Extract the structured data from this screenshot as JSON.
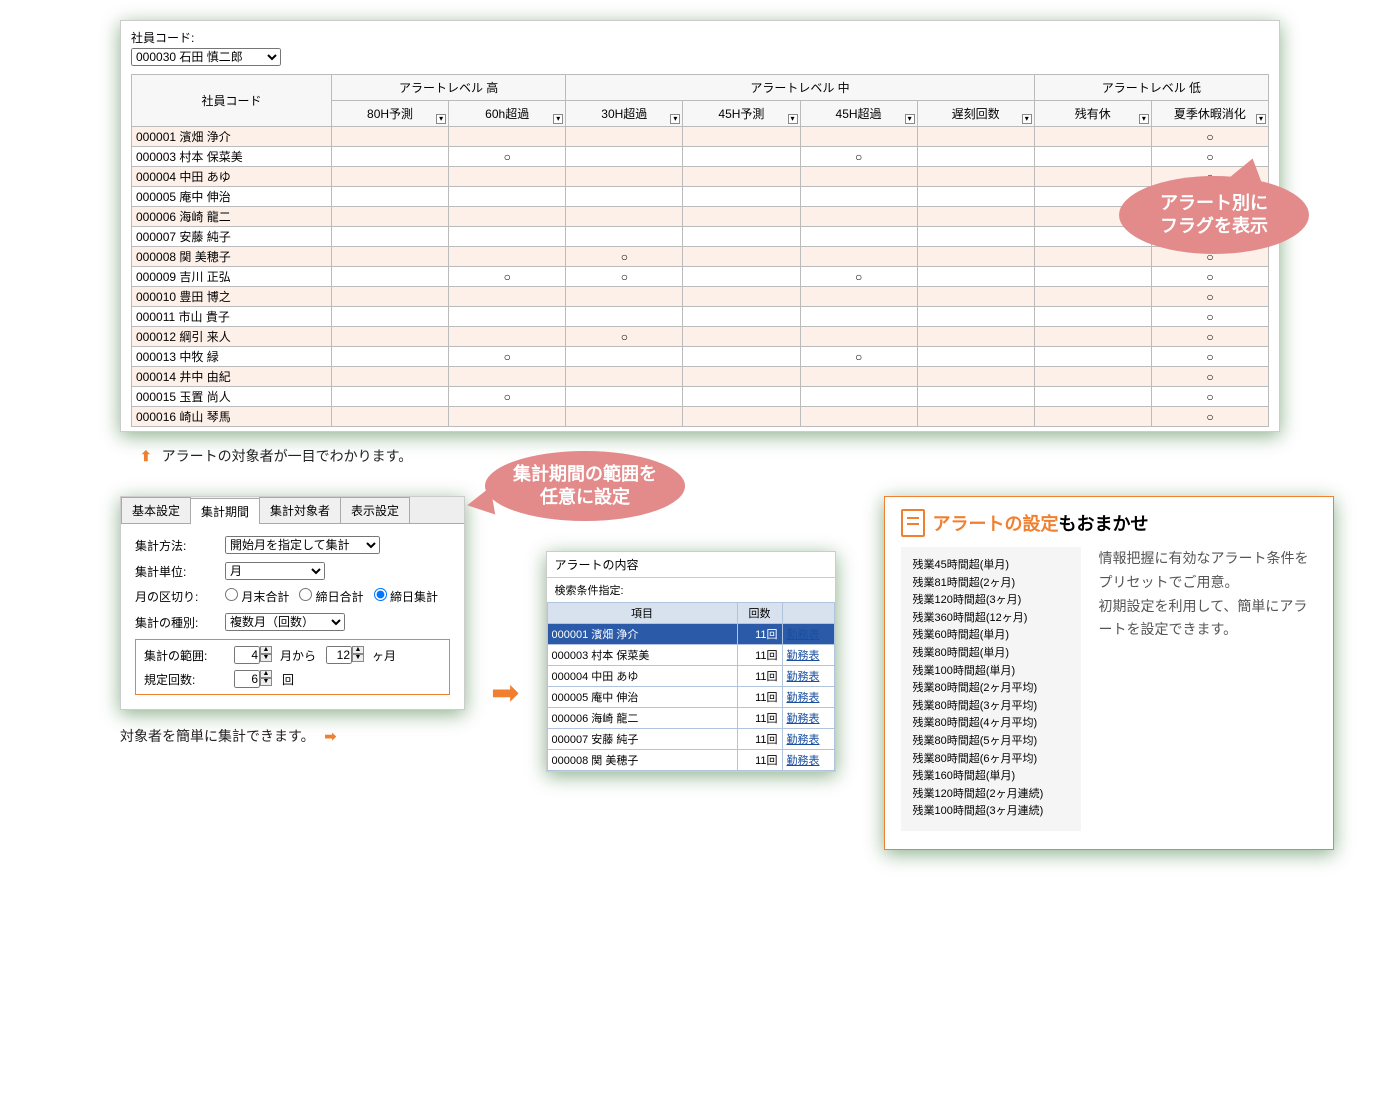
{
  "main": {
    "emp_code_label": "社員コード:",
    "emp_select_value": "000030 石田 慎二郎",
    "header": {
      "emp_code": "社員コード",
      "groups": {
        "high": "アラートレベル 高",
        "mid": "アラートレベル 中",
        "low": "アラートレベル 低"
      },
      "cols": {
        "c80": "80H予測",
        "c60": "60h超過",
        "c30": "30H超過",
        "c45p": "45H予測",
        "c45o": "45H超過",
        "late": "遅刻回数",
        "rest": "残有休",
        "summer": "夏季休暇消化"
      }
    },
    "rows": [
      {
        "emp": "000001 濱畑 浄介",
        "marks": {
          "summer": "○"
        }
      },
      {
        "emp": "000003 村本 保菜美",
        "marks": {
          "c60": "○",
          "c45o": "○",
          "summer": "○"
        }
      },
      {
        "emp": "000004 中田 あゆ",
        "marks": {
          "summer": "○"
        }
      },
      {
        "emp": "000005 庵中 伸治",
        "marks": {
          "summer": "○"
        }
      },
      {
        "emp": "000006 海崎 龍二",
        "marks": {
          "summer": "○"
        }
      },
      {
        "emp": "000007 安藤 純子",
        "marks": {
          "summer": "○"
        }
      },
      {
        "emp": "000008 関 美穂子",
        "marks": {
          "c30": "○",
          "summer": "○"
        }
      },
      {
        "emp": "000009 吉川 正弘",
        "marks": {
          "c60": "○",
          "c30": "○",
          "c45o": "○",
          "summer": "○"
        }
      },
      {
        "emp": "000010 豊田 博之",
        "marks": {
          "summer": "○"
        }
      },
      {
        "emp": "000011 市山 貴子",
        "marks": {
          "summer": "○"
        }
      },
      {
        "emp": "000012 綱引 来人",
        "marks": {
          "c30": "○",
          "summer": "○"
        }
      },
      {
        "emp": "000013 中牧 緑",
        "marks": {
          "c60": "○",
          "c45o": "○",
          "summer": "○"
        }
      },
      {
        "emp": "000014 井中 由紀",
        "marks": {
          "summer": "○"
        }
      },
      {
        "emp": "000015 玉置 尚人",
        "marks": {
          "c60": "○",
          "summer": "○"
        }
      },
      {
        "emp": "000016 崎山 琴馬",
        "marks": {
          "summer": "○"
        }
      }
    ],
    "bubble": "アラート別に\nフラグを表示"
  },
  "caption1": "アラートの対象者が一目でわかります。",
  "settings": {
    "tabs": [
      "基本設定",
      "集計期間",
      "集計対象者",
      "表示設定"
    ],
    "active_tab": 1,
    "method_label": "集計方法:",
    "method_value": "開始月を指定して集計",
    "unit_label": "集計単位:",
    "unit_value": "月",
    "split_label": "月の区切り:",
    "split_options": [
      "月末合計",
      "締日合計",
      "締日集計"
    ],
    "split_selected": 2,
    "kind_label": "集計の種別:",
    "kind_value": "複数月（回数）",
    "range_label": "集計の範囲:",
    "range_from": "4",
    "range_from_unit": "月から",
    "range_to": "12",
    "range_to_unit": "ヶ月",
    "count_label": "規定回数:",
    "count_value": "6",
    "count_unit": "回",
    "bubble": "集計期間の範囲を\n任意に設定"
  },
  "caption2": "対象者を簡単に集計できます。",
  "alert": {
    "title": "アラートの内容",
    "cond_label": "検索条件指定:",
    "cols": {
      "item": "項目",
      "count": "回数",
      "link": ""
    },
    "link_text": "勤務表",
    "rows": [
      {
        "item": "000001 濱畑 浄介",
        "count": "11回",
        "sel": true
      },
      {
        "item": "000003 村本 保菜美",
        "count": "11回"
      },
      {
        "item": "000004 中田 あゆ",
        "count": "11回"
      },
      {
        "item": "000005 庵中 伸治",
        "count": "11回"
      },
      {
        "item": "000006 海崎 龍二",
        "count": "11回"
      },
      {
        "item": "000007 安藤 純子",
        "count": "11回"
      },
      {
        "item": "000008 関 美穂子",
        "count": "11回"
      }
    ]
  },
  "info": {
    "title_em": "アラートの設定",
    "title_rest": "もおまかせ",
    "presets": [
      "残業45時間超(単月)",
      "残業81時間超(2ヶ月)",
      "残業120時間超(3ヶ月)",
      "残業360時間超(12ヶ月)",
      "残業60時間超(単月)",
      "残業80時間超(単月)",
      "残業100時間超(単月)",
      "残業80時間超(2ヶ月平均)",
      "残業80時間超(3ヶ月平均)",
      "残業80時間超(4ヶ月平均)",
      "残業80時間超(5ヶ月平均)",
      "残業80時間超(6ヶ月平均)",
      "残業160時間超(単月)",
      "残業120時間超(2ヶ月連続)",
      "残業100時間超(3ヶ月連続)"
    ],
    "text": "情報把握に有効なアラート条件をプリセットでご用意。\n初期設定を利用して、簡単にアラートを設定できます。"
  },
  "colors": {
    "accent": "#f08030",
    "bubble": "#e38a8a",
    "row_odd": "#fdf0e9"
  }
}
